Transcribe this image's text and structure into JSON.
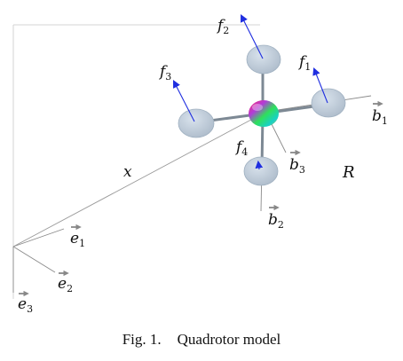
{
  "figure": {
    "caption_prefix": "Fig. 1.",
    "caption_title": "Quadrotor model",
    "inertial_frame": {
      "e1": {
        "symbol": "e",
        "index": "1"
      },
      "e2": {
        "symbol": "e",
        "index": "2"
      },
      "e3": {
        "symbol": "e",
        "index": "3"
      }
    },
    "body_frame": {
      "b1": {
        "symbol": "b",
        "index": "1"
      },
      "b2": {
        "symbol": "b",
        "index": "2"
      },
      "b3": {
        "symbol": "b",
        "index": "3"
      }
    },
    "position_label": "x",
    "attitude_label": "R",
    "rotor_forces": [
      {
        "symbol": "f",
        "index": "1"
      },
      {
        "symbol": "f",
        "index": "2"
      },
      {
        "symbol": "f",
        "index": "3"
      },
      {
        "symbol": "f",
        "index": "4"
      }
    ],
    "colors": {
      "rotor": "#b7c5d4",
      "arm": "#7d8994",
      "force_arrow": "#1f2ee0",
      "frame_line": "#9a9a9a"
    }
  }
}
